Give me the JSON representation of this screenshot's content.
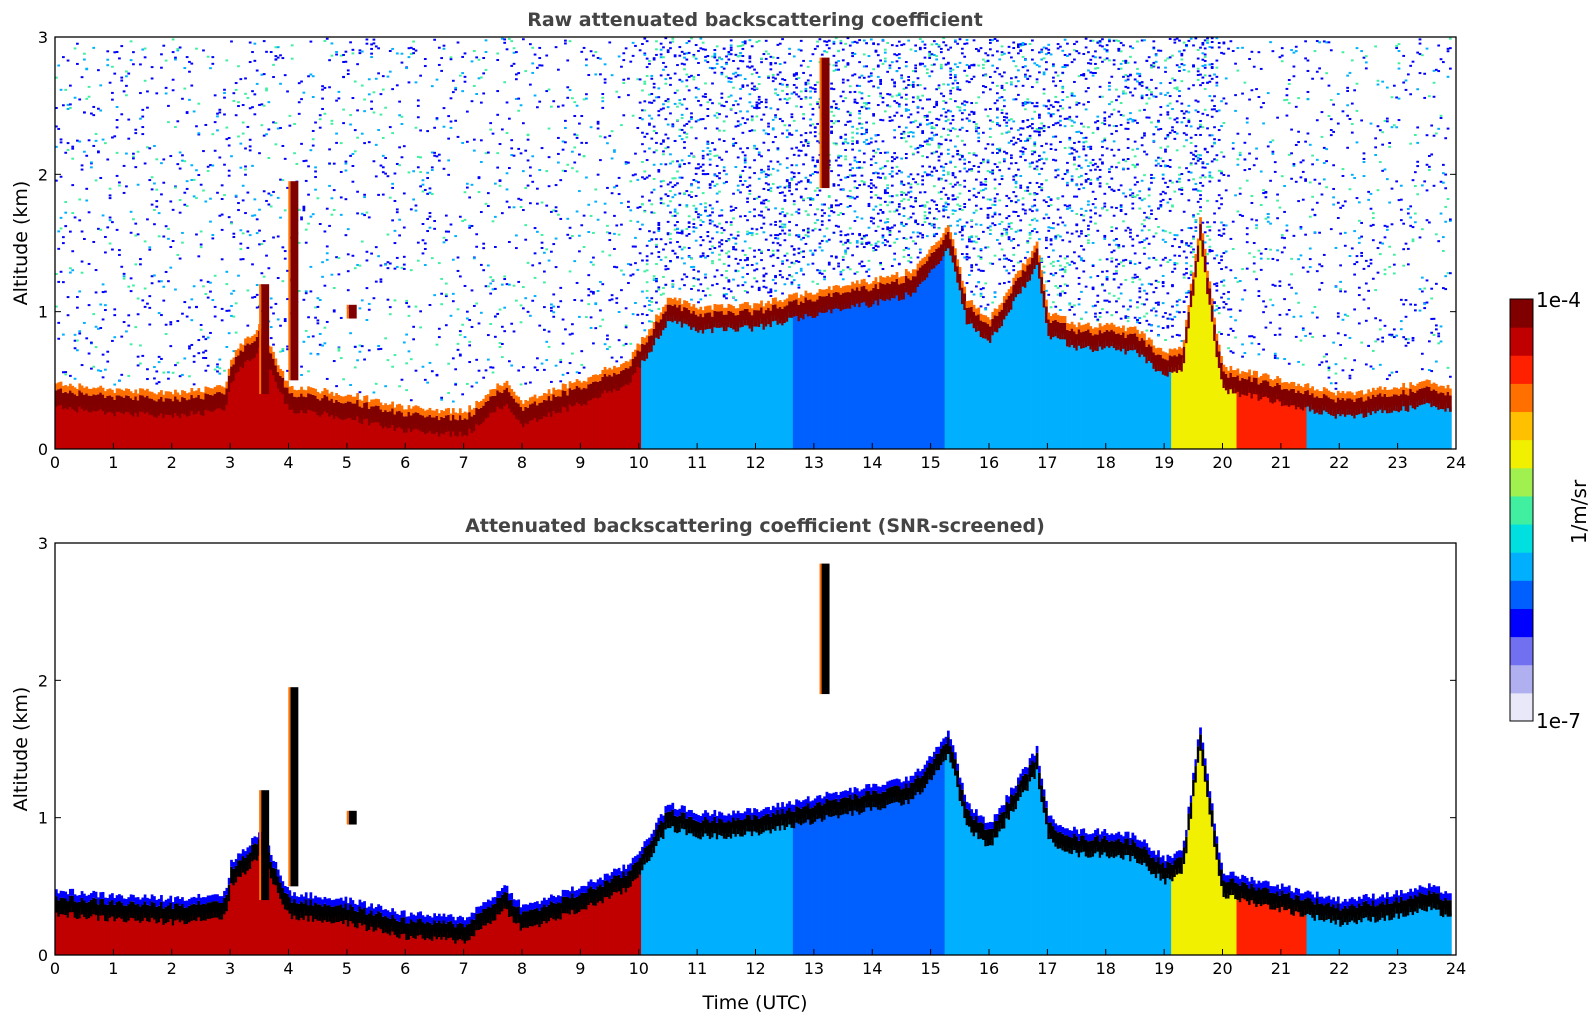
{
  "chart_data": [
    {
      "type": "heatmap",
      "title": "Raw attenuated backscattering coefficient",
      "xlabel": "",
      "ylabel": "Altitude (km)",
      "xlim": [
        0,
        24
      ],
      "ylim": [
        0,
        3
      ],
      "xticks": [
        "0",
        "1",
        "2",
        "3",
        "4",
        "5",
        "6",
        "7",
        "8",
        "9",
        "10",
        "11",
        "12",
        "13",
        "14",
        "15",
        "16",
        "17",
        "18",
        "19",
        "20",
        "21",
        "22",
        "23",
        "24"
      ],
      "yticks": [
        "0",
        "1",
        "2",
        "3"
      ],
      "screened": false,
      "layer_top_km": [
        [
          0,
          0.42
        ],
        [
          1,
          0.38
        ],
        [
          2,
          0.36
        ],
        [
          2.9,
          0.4
        ],
        [
          3,
          0.62
        ],
        [
          3.5,
          0.85
        ],
        [
          4,
          0.4
        ],
        [
          5,
          0.35
        ],
        [
          6,
          0.25
        ],
        [
          7,
          0.22
        ],
        [
          7.7,
          0.45
        ],
        [
          8,
          0.3
        ],
        [
          9,
          0.45
        ],
        [
          9.8,
          0.6
        ],
        [
          10,
          0.72
        ],
        [
          10.5,
          1.05
        ],
        [
          11,
          0.98
        ],
        [
          12,
          1.0
        ],
        [
          12.5,
          1.05
        ],
        [
          13,
          1.1
        ],
        [
          14,
          1.18
        ],
        [
          14.7,
          1.25
        ],
        [
          15.3,
          1.58
        ],
        [
          15.6,
          1.05
        ],
        [
          16,
          0.9
        ],
        [
          16.8,
          1.45
        ],
        [
          17,
          0.95
        ],
        [
          17.5,
          0.85
        ],
        [
          18,
          0.85
        ],
        [
          18.5,
          0.82
        ],
        [
          19,
          0.65
        ],
        [
          19.3,
          0.7
        ],
        [
          19.6,
          1.62
        ],
        [
          19.9,
          0.75
        ],
        [
          20,
          0.55
        ],
        [
          21,
          0.45
        ],
        [
          22,
          0.35
        ],
        [
          23,
          0.4
        ],
        [
          23.5,
          0.45
        ],
        [
          23.9,
          0.4
        ]
      ],
      "plumes": [
        {
          "t": 13.2,
          "bottom_km": 1.9,
          "top_km": 2.85
        },
        {
          "t": 5.1,
          "bottom_km": 0.95,
          "top_km": 1.05
        },
        {
          "t": 3.6,
          "bottom_km": 0.4,
          "top_km": 1.2
        },
        {
          "t": 4.1,
          "bottom_km": 0.5,
          "top_km": 1.95
        }
      ]
    },
    {
      "type": "heatmap",
      "title": "Attenuated backscattering coefficient (SNR-screened)",
      "xlabel": "Time (UTC)",
      "ylabel": "Altitude (km)",
      "xlim": [
        0,
        24
      ],
      "ylim": [
        0,
        3
      ],
      "xticks": [
        "0",
        "1",
        "2",
        "3",
        "4",
        "5",
        "6",
        "7",
        "8",
        "9",
        "10",
        "11",
        "12",
        "13",
        "14",
        "15",
        "16",
        "17",
        "18",
        "19",
        "20",
        "21",
        "22",
        "23",
        "24"
      ],
      "yticks": [
        "0",
        "1",
        "2",
        "3"
      ],
      "screened": true
    }
  ],
  "colorbar": {
    "label": "1/m/sr",
    "max_label": "1e-4",
    "min_label": "1e-7",
    "scale": "log",
    "colors": [
      "#e8e8f8",
      "#b0b0f0",
      "#7070f0",
      "#0000ff",
      "#0060ff",
      "#00b0ff",
      "#00e0e0",
      "#40f0a0",
      "#a0f050",
      "#f0f000",
      "#ffc000",
      "#ff7000",
      "#ff2000",
      "#c00000",
      "#800000"
    ]
  }
}
